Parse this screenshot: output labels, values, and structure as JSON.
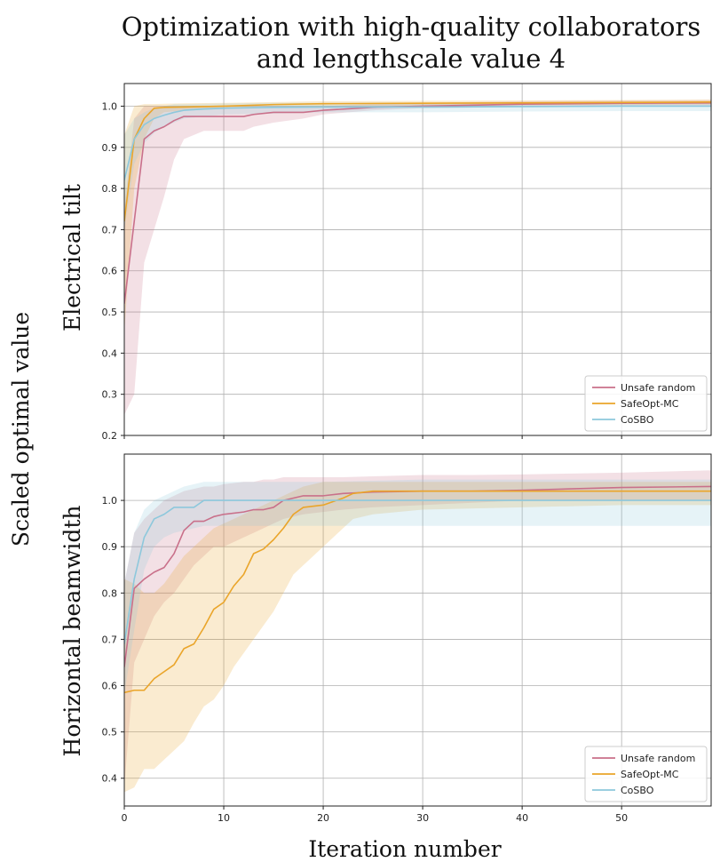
{
  "figure": {
    "title_line1": "Optimization with high-quality collaborators",
    "title_line2": "and lengthscale value 4",
    "ylabel": "Scaled optimal value",
    "xlabel": "Iteration number"
  },
  "colors": {
    "Unsafe random": "#c9708a",
    "SafeOpt-MC": "#eaa52a",
    "CoSBO": "#8dc8dc"
  },
  "chart_data": [
    {
      "type": "line",
      "title": "Electrical tilt",
      "xlabel": "Iteration number",
      "ylabel": "Electrical tilt",
      "xlim": [
        0,
        59
      ],
      "ylim": [
        0.2,
        1.055
      ],
      "xticks": [
        0,
        10,
        20,
        30,
        40,
        50
      ],
      "yticks": [
        0.2,
        0.3,
        0.4,
        0.5,
        0.6,
        0.7,
        0.8,
        0.9,
        1.0
      ],
      "grid": true,
      "legend_position": "bottom-right",
      "series": [
        {
          "name": "Unsafe random",
          "x": [
            0,
            1,
            2,
            3,
            4,
            5,
            6,
            8,
            10,
            12,
            13,
            15,
            18,
            20,
            25,
            30,
            40,
            50,
            59
          ],
          "values": [
            0.52,
            0.72,
            0.92,
            0.94,
            0.95,
            0.965,
            0.975,
            0.975,
            0.975,
            0.975,
            0.98,
            0.985,
            0.985,
            0.99,
            0.997,
            1.0,
            1.005,
            1.007,
            1.008
          ],
          "lower": [
            0.25,
            0.3,
            0.62,
            0.7,
            0.78,
            0.87,
            0.92,
            0.94,
            0.94,
            0.94,
            0.95,
            0.96,
            0.97,
            0.98,
            0.99,
            0.995,
            0.998,
            1.0,
            1.0
          ],
          "upper": [
            0.75,
            0.97,
            1.0,
            1.0,
            1.0,
            1.0,
            1.0,
            1.0,
            1.0,
            1.0,
            1.0,
            1.0,
            1.0,
            1.0,
            1.005,
            1.008,
            1.012,
            1.014,
            1.015
          ]
        },
        {
          "name": "SafeOpt-MC",
          "x": [
            0,
            1,
            2,
            3,
            4,
            6,
            10,
            15,
            20,
            30,
            40,
            50,
            59
          ],
          "values": [
            0.72,
            0.92,
            0.97,
            0.995,
            0.997,
            0.998,
            1.0,
            1.004,
            1.006,
            1.007,
            1.008,
            1.009,
            1.01
          ],
          "lower": [
            0.45,
            0.8,
            0.92,
            0.97,
            0.985,
            0.99,
            0.995,
            1.0,
            1.0,
            1.001,
            1.002,
            1.003,
            1.004
          ],
          "upper": [
            0.93,
            1.0,
            1.005,
            1.005,
            1.006,
            1.007,
            1.008,
            1.01,
            1.012,
            1.013,
            1.014,
            1.015,
            1.016
          ]
        },
        {
          "name": "CoSBO",
          "x": [
            0,
            1,
            2,
            3,
            4,
            5,
            6,
            8,
            10,
            15,
            20,
            30,
            40,
            50,
            59
          ],
          "values": [
            0.82,
            0.92,
            0.955,
            0.97,
            0.978,
            0.985,
            0.99,
            0.993,
            0.995,
            0.997,
            0.998,
            0.998,
            0.999,
            1.0,
            1.0
          ],
          "lower": [
            0.7,
            0.86,
            0.91,
            0.935,
            0.95,
            0.96,
            0.97,
            0.975,
            0.98,
            0.982,
            0.985,
            0.985,
            0.987,
            0.988,
            0.988
          ],
          "upper": [
            0.93,
            0.97,
            0.985,
            0.995,
            1.0,
            1.005,
            1.005,
            1.006,
            1.007,
            1.008,
            1.008,
            1.008,
            1.009,
            1.01,
            1.01
          ]
        }
      ]
    },
    {
      "type": "line",
      "title": "Horizontal beamwidth",
      "xlabel": "Iteration number",
      "ylabel": "Horizontal beamwidth",
      "xlim": [
        0,
        59
      ],
      "ylim": [
        0.34,
        1.1
      ],
      "xticks": [
        0,
        10,
        20,
        30,
        40,
        50
      ],
      "yticks": [
        0.4,
        0.5,
        0.6,
        0.7,
        0.8,
        0.9,
        1.0
      ],
      "grid": true,
      "legend_position": "bottom-right",
      "series": [
        {
          "name": "Unsafe random",
          "x": [
            0,
            1,
            2,
            3,
            4,
            5,
            6,
            7,
            8,
            9,
            10,
            12,
            13,
            14,
            15,
            16,
            18,
            20,
            22,
            25,
            30,
            35,
            40,
            45,
            50,
            59
          ],
          "values": [
            0.64,
            0.81,
            0.83,
            0.845,
            0.855,
            0.885,
            0.935,
            0.955,
            0.955,
            0.965,
            0.97,
            0.975,
            0.98,
            0.98,
            0.985,
            1.0,
            1.01,
            1.01,
            1.015,
            1.018,
            1.02,
            1.02,
            1.022,
            1.025,
            1.028,
            1.03
          ],
          "lower": [
            0.38,
            0.65,
            0.7,
            0.75,
            0.78,
            0.8,
            0.83,
            0.86,
            0.88,
            0.9,
            0.9,
            0.92,
            0.93,
            0.94,
            0.95,
            0.96,
            0.97,
            0.975,
            0.98,
            0.985,
            0.99,
            0.995,
            1.0,
            1.0,
            1.0,
            1.0
          ],
          "upper": [
            0.82,
            0.93,
            0.96,
            0.98,
            1.0,
            1.01,
            1.02,
            1.025,
            1.03,
            1.03,
            1.035,
            1.04,
            1.04,
            1.045,
            1.045,
            1.05,
            1.05,
            1.05,
            1.05,
            1.052,
            1.055,
            1.055,
            1.056,
            1.058,
            1.06,
            1.065
          ]
        },
        {
          "name": "SafeOpt-MC",
          "x": [
            0,
            1,
            2,
            3,
            4,
            5,
            6,
            7,
            8,
            9,
            10,
            11,
            12,
            13,
            14,
            15,
            16,
            17,
            18,
            20,
            22,
            23,
            25,
            30,
            40,
            50,
            59
          ],
          "values": [
            0.585,
            0.59,
            0.59,
            0.615,
            0.63,
            0.645,
            0.68,
            0.69,
            0.725,
            0.765,
            0.78,
            0.815,
            0.84,
            0.885,
            0.895,
            0.915,
            0.94,
            0.97,
            0.985,
            0.99,
            1.005,
            1.015,
            1.02,
            1.02,
            1.02,
            1.02,
            1.02
          ],
          "lower": [
            0.37,
            0.38,
            0.42,
            0.42,
            0.44,
            0.46,
            0.48,
            0.52,
            0.555,
            0.57,
            0.6,
            0.64,
            0.67,
            0.7,
            0.73,
            0.76,
            0.8,
            0.84,
            0.86,
            0.9,
            0.94,
            0.96,
            0.97,
            0.98,
            0.985,
            0.99,
            0.99
          ],
          "upper": [
            0.83,
            0.82,
            0.8,
            0.8,
            0.82,
            0.85,
            0.88,
            0.9,
            0.92,
            0.94,
            0.95,
            0.96,
            0.97,
            0.98,
            0.99,
            1.0,
            1.01,
            1.02,
            1.03,
            1.04,
            1.04,
            1.04,
            1.04,
            1.04,
            1.04,
            1.04,
            1.04
          ]
        },
        {
          "name": "CoSBO",
          "x": [
            0,
            1,
            2,
            3,
            4,
            5,
            6,
            7,
            8,
            9,
            10,
            15,
            20,
            30,
            40,
            50,
            59
          ],
          "values": [
            0.69,
            0.83,
            0.92,
            0.96,
            0.97,
            0.985,
            0.985,
            0.985,
            1.0,
            1.0,
            1.0,
            1.0,
            1.0,
            1.0,
            1.0,
            1.0,
            1.0
          ],
          "lower": [
            0.58,
            0.72,
            0.85,
            0.9,
            0.92,
            0.93,
            0.935,
            0.94,
            0.945,
            0.945,
            0.945,
            0.945,
            0.945,
            0.945,
            0.945,
            0.945,
            0.945
          ],
          "upper": [
            0.82,
            0.93,
            0.98,
            1.0,
            1.01,
            1.02,
            1.03,
            1.035,
            1.04,
            1.04,
            1.04,
            1.04,
            1.04,
            1.045,
            1.045,
            1.045,
            1.045
          ]
        }
      ]
    }
  ]
}
